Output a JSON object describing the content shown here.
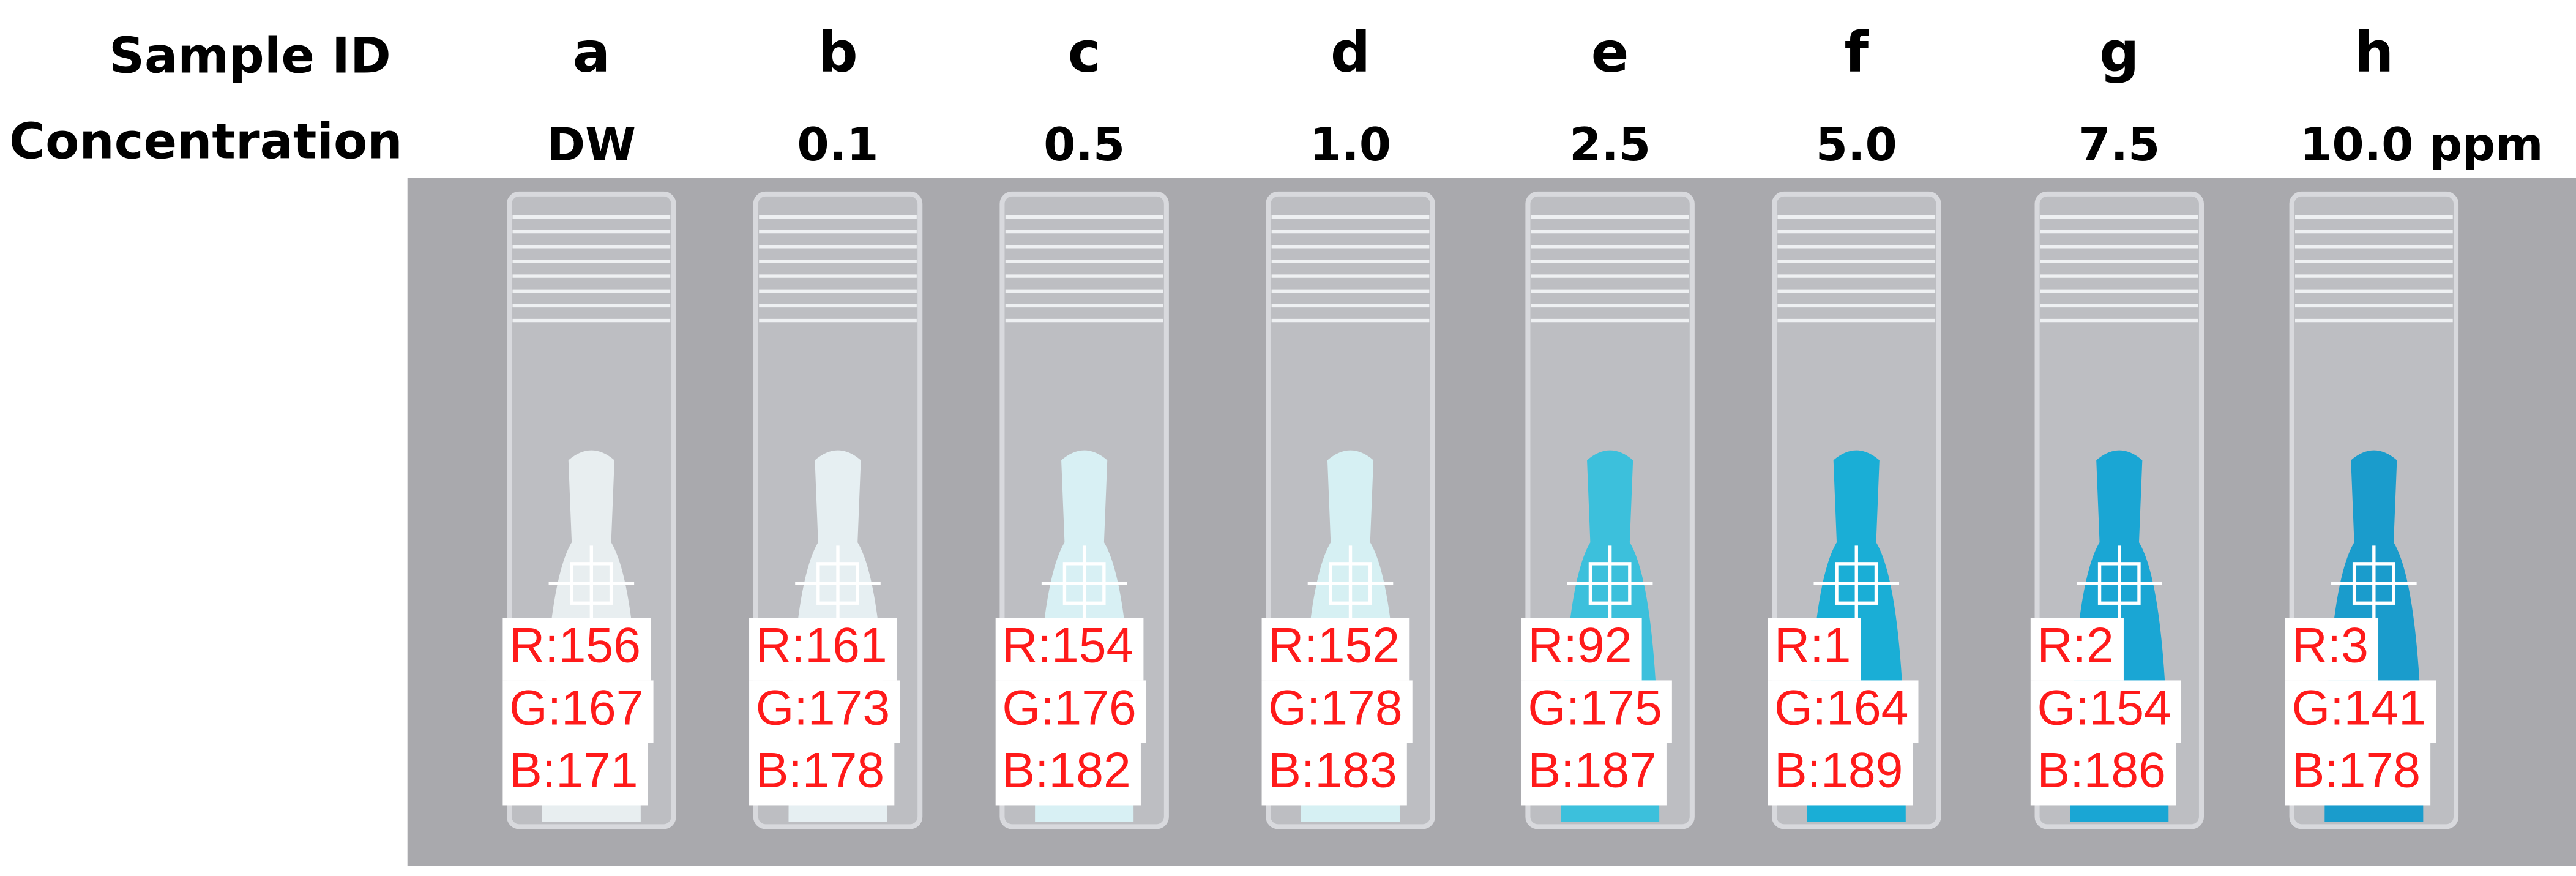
{
  "header": {
    "sample_id_label": "Sample ID",
    "concentration_label": "Concentration"
  },
  "samples": [
    {
      "id": "a",
      "concentration": "DW",
      "r": "R:156",
      "g": "G:167",
      "b": "B:171"
    },
    {
      "id": "b",
      "concentration": "0.1",
      "r": "R:161",
      "g": "G:173",
      "b": "B:178"
    },
    {
      "id": "c",
      "concentration": "0.5",
      "r": "R:154",
      "g": "G:176",
      "b": "B:182"
    },
    {
      "id": "d",
      "concentration": "1.0",
      "r": "R:152",
      "g": "G:178",
      "b": "B:183"
    },
    {
      "id": "e",
      "concentration": "2.5",
      "r": "R:92",
      "g": "G:175",
      "b": "B:187"
    },
    {
      "id": "f",
      "concentration": "5.0",
      "r": "R:1",
      "g": "G:164",
      "b": "B:189"
    },
    {
      "id": "g",
      "concentration": "7.5",
      "r": "R:2",
      "g": "G:154",
      "b": "B:186"
    },
    {
      "id": "h",
      "concentration": "10.0 ppm",
      "r": "R:3",
      "g": "G:141",
      "b": "B:178"
    }
  ]
}
